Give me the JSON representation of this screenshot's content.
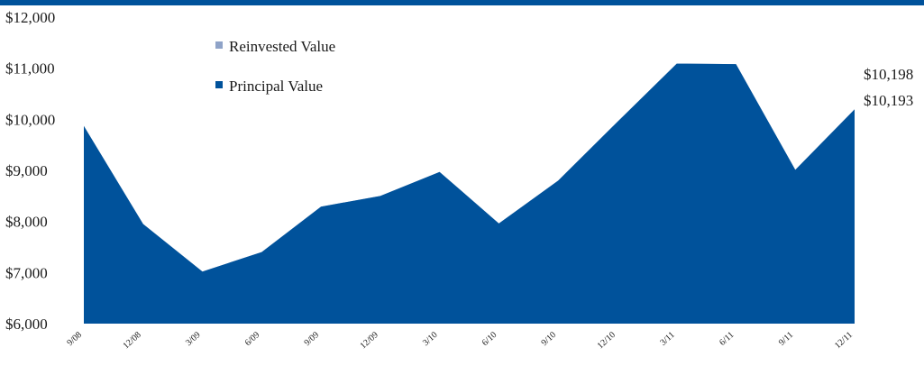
{
  "chart_data": {
    "type": "area",
    "title": "",
    "xlabel": "",
    "ylabel": "",
    "ylim": [
      6000,
      12000
    ],
    "y_ticks": [
      6000,
      7000,
      8000,
      9000,
      10000,
      11000,
      12000
    ],
    "y_tick_labels": [
      "$6,000",
      "$7,000",
      "$8,000",
      "$9,000",
      "$10,000",
      "$11,000",
      "$12,000"
    ],
    "categories": [
      "9/08",
      "12/08",
      "3/09",
      "6/09",
      "9/09",
      "12/09",
      "3/10",
      "6/10",
      "9/10",
      "12/10",
      "3/11",
      "6/11",
      "9/11",
      "12/11"
    ],
    "x_tick_labels": [
      "9/08",
      "12/08",
      "3/09",
      "6/09",
      "9/09",
      "12/09",
      "3/10",
      "6/10",
      "9/10",
      "12/10",
      "3/11",
      "6/11",
      "9/11",
      "12/11"
    ],
    "grid": false,
    "legend_position": "top-left",
    "series": [
      {
        "name": "Reinvested Value",
        "color": "#8fa3c8",
        "values": [
          9870,
          7950,
          7020,
          7400,
          8290,
          8500,
          8970,
          7960,
          8800,
          9950,
          11090,
          11080,
          9010,
          10198
        ]
      },
      {
        "name": "Principal Value",
        "color": "#00529b",
        "values": [
          9870,
          7950,
          7020,
          7400,
          8290,
          8500,
          8970,
          7960,
          8800,
          9950,
          11090,
          11080,
          9010,
          10193
        ]
      }
    ],
    "end_labels": [
      "$10,198",
      "$10,193"
    ]
  },
  "colors": {
    "top_rule": "#00529b",
    "text": "#1a1a1a",
    "principal": "#00529b",
    "reinvested": "#8fa3c8"
  }
}
